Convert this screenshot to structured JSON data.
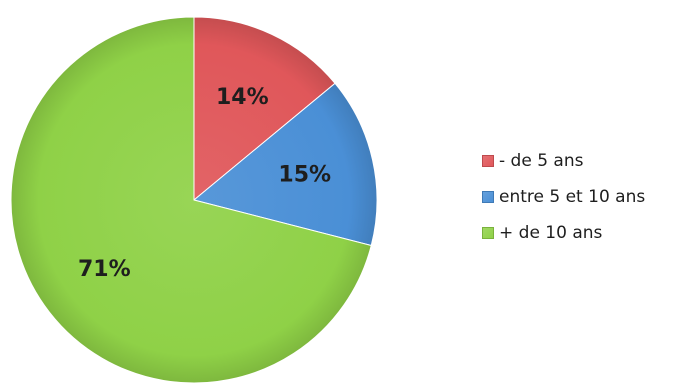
{
  "chart_data": {
    "type": "pie",
    "title": "",
    "start_angle_deg": 0,
    "direction": "clockwise",
    "legend_position": "right",
    "slices": [
      {
        "label": "- de 5 ans",
        "value": 14,
        "value_label": "14%",
        "color": "#e0575a"
      },
      {
        "label": "entre 5 et 10 ans",
        "value": 15,
        "value_label": "15%",
        "color": "#4a8fd6"
      },
      {
        "label": "+ de 10 ans",
        "value": 71,
        "value_label": "71%",
        "color": "#8fd147"
      }
    ]
  }
}
